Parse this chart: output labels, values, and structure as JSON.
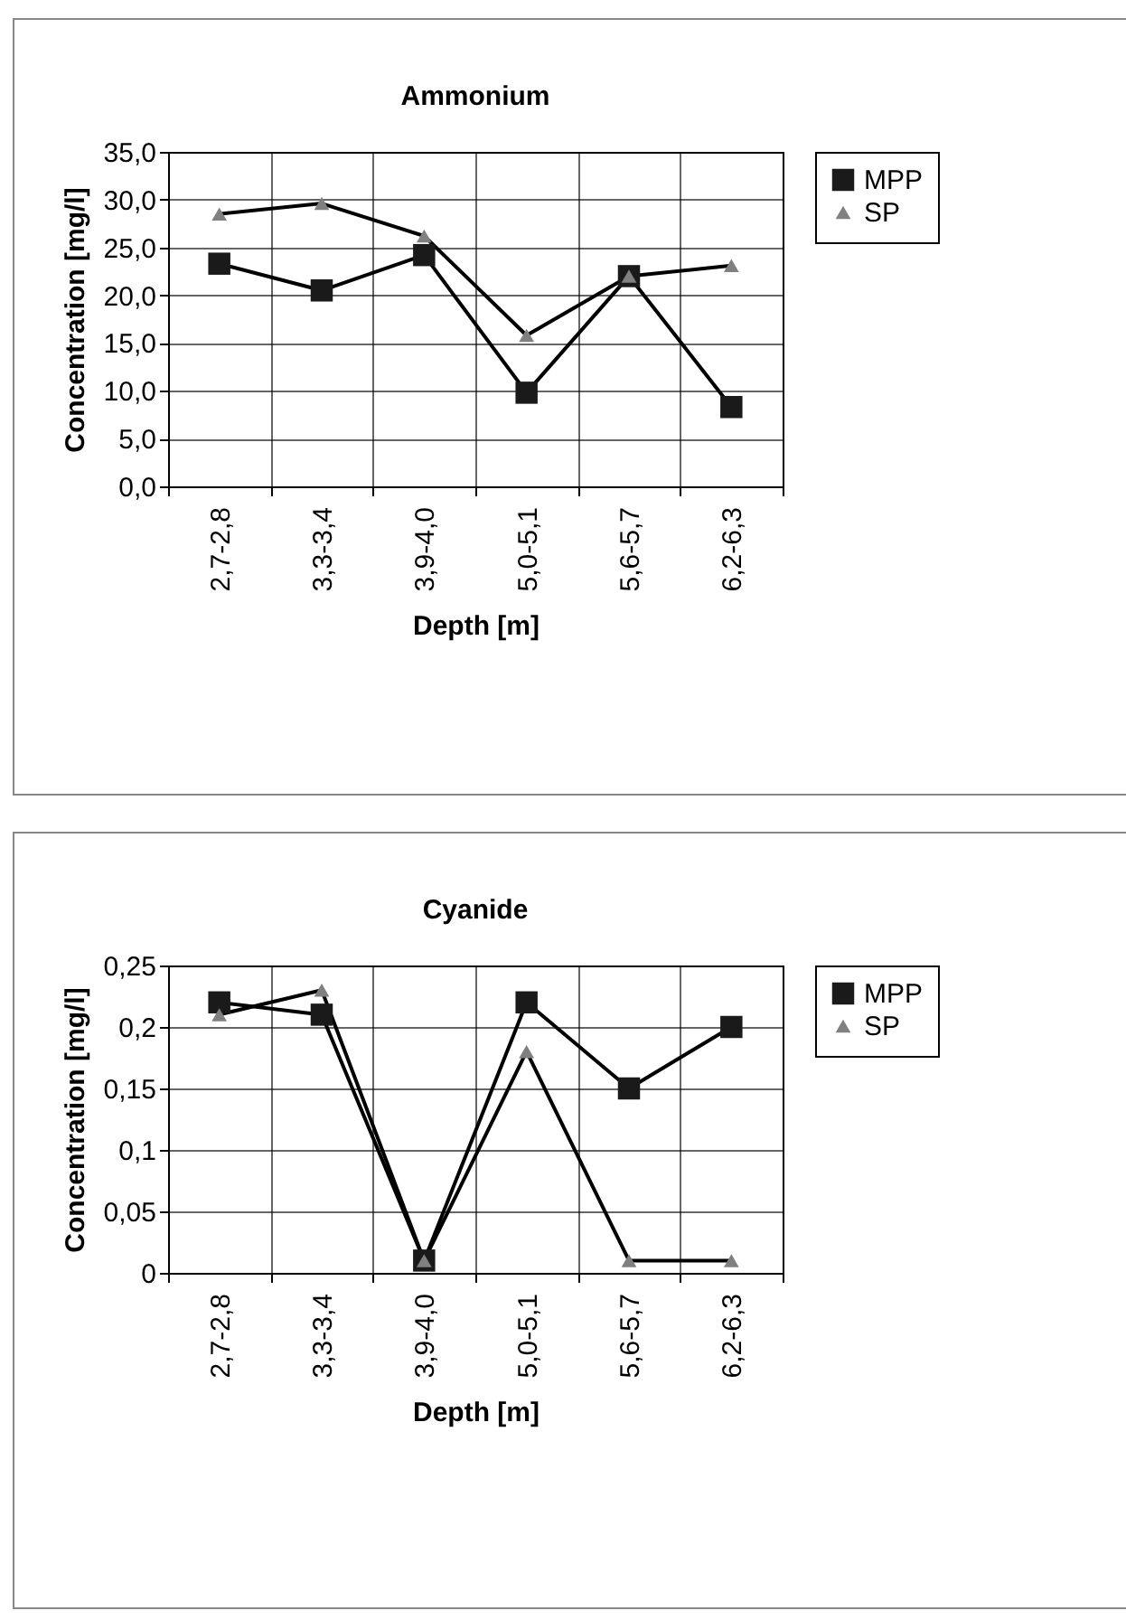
{
  "chart_data": [
    {
      "type": "line",
      "title": "Ammonium",
      "xlabel": "Depth [m]",
      "ylabel": "Concentration [mg/l]",
      "categories": [
        "2,7-2,8",
        "3,3-3,4",
        "3,9-4,0",
        "5,0-5,1",
        "5,6-5,7",
        "6,2-6,3"
      ],
      "series": [
        {
          "name": "MPP",
          "color": "#1a1a1a",
          "marker": "square",
          "values": [
            23.3,
            20.5,
            24.2,
            9.8,
            22.0,
            8.3
          ]
        },
        {
          "name": "SP",
          "color": "#808080",
          "marker": "triangle",
          "values": [
            28.5,
            29.6,
            26.2,
            15.8,
            22.0,
            23.1
          ]
        }
      ],
      "ylim": [
        0,
        35
      ],
      "yticks": [
        {
          "value": 0,
          "label": "0,0"
        },
        {
          "value": 5,
          "label": "5,0"
        },
        {
          "value": 10,
          "label": "10,0"
        },
        {
          "value": 15,
          "label": "15,0"
        },
        {
          "value": 20,
          "label": "20,0"
        },
        {
          "value": 25,
          "label": "25,0"
        },
        {
          "value": 30,
          "label": "30,0"
        },
        {
          "value": 35,
          "label": "35,0"
        }
      ],
      "grid": true,
      "legend": "right"
    },
    {
      "type": "line",
      "title": "Cyanide",
      "xlabel": "Depth [m]",
      "ylabel": "Concentration [mg/l]",
      "categories": [
        "2,7-2,8",
        "3,3-3,4",
        "3,9-4,0",
        "5,0-5,1",
        "5,6-5,7",
        "6,2-6,3"
      ],
      "series": [
        {
          "name": "MPP",
          "color": "#1a1a1a",
          "marker": "square",
          "values": [
            0.22,
            0.21,
            0.01,
            0.22,
            0.15,
            0.2
          ]
        },
        {
          "name": "SP",
          "color": "#808080",
          "marker": "triangle",
          "values": [
            0.21,
            0.23,
            0.01,
            0.18,
            0.01,
            0.01
          ]
        }
      ],
      "ylim": [
        0,
        0.25
      ],
      "yticks": [
        {
          "value": 0,
          "label": "0"
        },
        {
          "value": 0.05,
          "label": "0,05"
        },
        {
          "value": 0.1,
          "label": "0,1"
        },
        {
          "value": 0.15,
          "label": "0,15"
        },
        {
          "value": 0.2,
          "label": "0,2"
        },
        {
          "value": 0.25,
          "label": "0,25"
        }
      ],
      "grid": true,
      "legend": "right"
    }
  ]
}
